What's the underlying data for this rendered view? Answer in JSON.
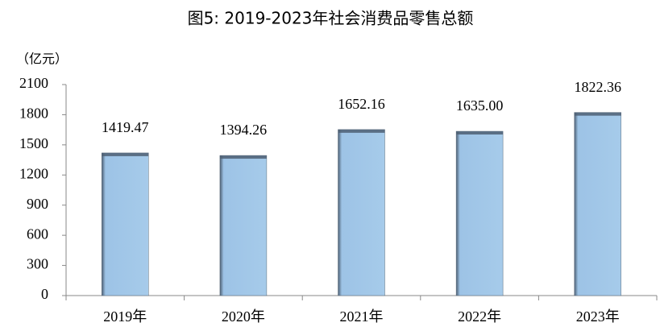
{
  "chart_data": {
    "type": "bar",
    "title": "图5: 2019-2023年社会消费品零售总额",
    "y_label": "（亿元）",
    "categories": [
      "2019年",
      "2020年",
      "2021年",
      "2022年",
      "2023年"
    ],
    "values": [
      1419.47,
      1394.26,
      1652.16,
      1635.0,
      1822.36
    ],
    "value_labels": [
      "1419.47",
      "1394.26",
      "1652.16",
      "1635.00",
      "1822.36"
    ],
    "color": "#9dc3e6",
    "ylim": [
      0,
      2100
    ],
    "yticks": [
      0,
      300,
      600,
      900,
      1200,
      1500,
      1800,
      2100
    ],
    "grid": false
  }
}
